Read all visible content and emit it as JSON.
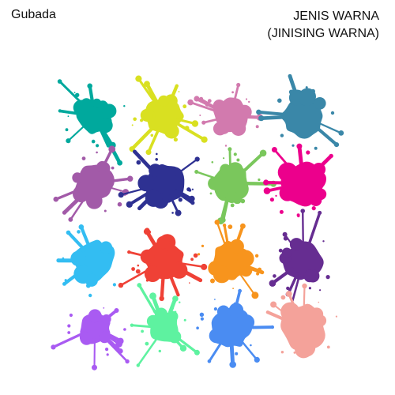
{
  "header": {
    "brand": "Gubada",
    "title_line1": "JENIS WARNA",
    "title_line2": "(JINISING WARNA)"
  },
  "splats": [
    {
      "name": "teal",
      "color": "#00A99D"
    },
    {
      "name": "lime",
      "color": "#D9E021"
    },
    {
      "name": "pink",
      "color": "#D27AAE"
    },
    {
      "name": "steel-blue",
      "color": "#3A87A8"
    },
    {
      "name": "purple",
      "color": "#A25AA8"
    },
    {
      "name": "navy",
      "color": "#2E3192"
    },
    {
      "name": "green",
      "color": "#7AC75C"
    },
    {
      "name": "magenta",
      "color": "#EC008C"
    },
    {
      "name": "sky-blue",
      "color": "#33BDF2"
    },
    {
      "name": "red",
      "color": "#EF4136"
    },
    {
      "name": "orange",
      "color": "#F7941D"
    },
    {
      "name": "dark-purple",
      "color": "#662D91"
    },
    {
      "name": "violet",
      "color": "#A95BF2"
    },
    {
      "name": "mint",
      "color": "#5EF2A0"
    },
    {
      "name": "blue",
      "color": "#4A8CF2"
    },
    {
      "name": "salmon",
      "color": "#F4A29A"
    }
  ]
}
